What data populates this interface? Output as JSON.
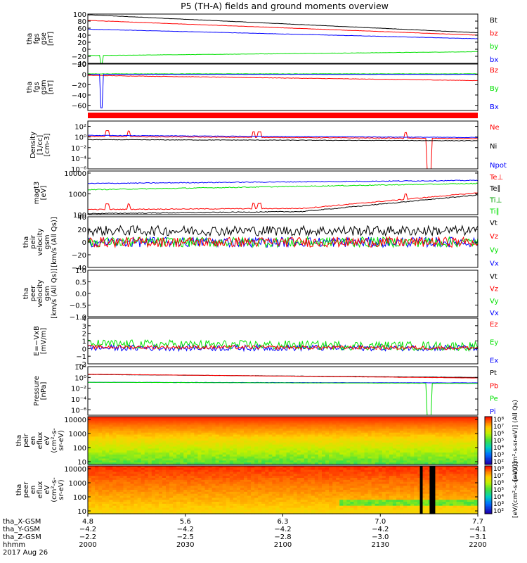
{
  "title": "P5 (TH-A) fields and ground moments overview",
  "colors": {
    "black": "#000000",
    "red": "#ff0000",
    "green": "#00e000",
    "blue": "#0000ff",
    "mid": "#00a0ff"
  },
  "chart_data": [
    {
      "type": "line",
      "ylabel": [
        "tha",
        "fgs",
        "gse",
        "[nT]"
      ],
      "ylim": [
        -40,
        100
      ],
      "scale": "linear",
      "yticks": [
        "100",
        "80",
        "60",
        "40",
        "20",
        "0",
        "−20",
        "−40"
      ],
      "tickvals": [
        100,
        80,
        60,
        40,
        20,
        0,
        -20,
        -40
      ],
      "legend": [
        "Bt",
        "bz",
        "by",
        "bx"
      ],
      "series": [
        {
          "name": "Bt",
          "color": "#000000",
          "x": [
            2000,
            2200
          ],
          "y": [
            98,
            47
          ],
          "noise": 0.4
        },
        {
          "name": "bz",
          "color": "#ff0000",
          "x": [
            2000,
            2200
          ],
          "y": [
            82,
            40
          ],
          "noise": 0.4
        },
        {
          "name": "by",
          "color": "#00e000",
          "x": [
            2000,
            2200
          ],
          "y": [
            -18,
            -7
          ],
          "noise": 0.4,
          "spike": [
            2007,
            -40
          ]
        },
        {
          "name": "bx",
          "color": "#0000ff",
          "x": [
            2000,
            2200
          ],
          "y": [
            57,
            30
          ],
          "noise": 0.4
        }
      ]
    },
    {
      "type": "line",
      "ylabel": [
        "tha",
        "fgs",
        "gsm",
        "[nT]"
      ],
      "ylim": [
        -70,
        20
      ],
      "scale": "linear",
      "yticks": [
        "20",
        "0",
        "−20",
        "−40",
        "−60"
      ],
      "tickvals": [
        20,
        0,
        -20,
        -40,
        -60
      ],
      "legend": [
        "Bz",
        "By",
        "Bx"
      ],
      "series": [
        {
          "name": "Bz",
          "color": "#ff0000",
          "x": [
            2000,
            2200
          ],
          "y": [
            -2,
            -12
          ],
          "noise": 0.4
        },
        {
          "name": "By",
          "color": "#00e000",
          "x": [
            2000,
            2200
          ],
          "y": [
            1,
            1
          ],
          "noise": 0.3
        },
        {
          "name": "Bx",
          "color": "#0000ff",
          "x": [
            2000,
            2200
          ],
          "y": [
            0,
            0
          ],
          "noise": 0.3,
          "spike": [
            2007,
            -65
          ]
        }
      ]
    },
    {
      "type": "flag_bar"
    },
    {
      "type": "line",
      "ylabel": [
        "Density",
        "[1/cc]",
        "[cm-3]"
      ],
      "ylim": [
        -6,
        3
      ],
      "scale": "log",
      "yticks": [
        "10²",
        "10⁰",
        "10⁻²",
        "10⁻⁴",
        "10⁻⁶"
      ],
      "tickvals": [
        2,
        0,
        -2,
        -4,
        -6
      ],
      "legend": [
        "Ne",
        "Ni",
        "Npot"
      ],
      "series": [
        {
          "name": "Ne",
          "color": "#ff0000",
          "x": [
            2000,
            2200
          ],
          "y": [
            0.1,
            -0.3
          ],
          "noise": 0.05,
          "bursts": [
            2010,
            2021,
            2085,
            2088,
            2163
          ],
          "dropout": [
            2174,
            2176
          ]
        },
        {
          "name": "Ni",
          "color": "#000000",
          "x": [
            2000,
            2200
          ],
          "y": [
            -0.5,
            -0.7
          ],
          "noise": 0.05
        },
        {
          "name": "Npot",
          "color": "#0000ff",
          "x": [
            2000,
            2200
          ],
          "y": [
            0.3,
            -0.1
          ],
          "noise": 0.05
        }
      ]
    },
    {
      "type": "line",
      "ylabel": [
        "magt3",
        "[eV]"
      ],
      "ylim": [
        2,
        4.1
      ],
      "scale": "log",
      "yticks": [
        "10000",
        "1000",
        "100"
      ],
      "tickvals": [
        4,
        3,
        2
      ],
      "legend": [
        "Te⊥",
        "Te∥",
        "Ti⊥",
        "Ti∥"
      ],
      "series": [
        {
          "name": "Te⊥",
          "color": "#ff0000",
          "x": [
            2000,
            2110,
            2200
          ],
          "y": [
            2.25,
            2.3,
            3.05
          ],
          "noise": 0.02,
          "bursts": [
            2010,
            2021,
            2085,
            2088,
            2163
          ]
        },
        {
          "name": "Te∥",
          "color": "#000000",
          "x": [
            2000,
            2110,
            2200
          ],
          "y": [
            2.05,
            2.15,
            2.95
          ],
          "noise": 0.02
        },
        {
          "name": "Ti⊥",
          "color": "#0000ff",
          "x": [
            2000,
            2200
          ],
          "y": [
            3.5,
            3.65
          ],
          "noise": 0.02
        },
        {
          "name": "Ti∥",
          "color": "#00e000",
          "x": [
            2000,
            2200
          ],
          "y": [
            3.2,
            3.5
          ],
          "noise": 0.02
        }
      ]
    },
    {
      "type": "line",
      "ylabel": [
        "tha",
        "peir",
        "velocity",
        "gsm",
        "[km/s (All Qs)]"
      ],
      "ylim": [
        -40,
        40
      ],
      "scale": "linear",
      "yticks": [
        "40",
        "20",
        "0",
        "−20",
        "−40"
      ],
      "tickvals": [
        40,
        20,
        0,
        -20,
        -40
      ],
      "legend": [
        "Vt",
        "Vz",
        "Vy",
        "Vx"
      ],
      "series": [
        {
          "name": "Vt",
          "color": "#000000",
          "x": [
            2000,
            2200
          ],
          "y": [
            18,
            18
          ],
          "noise": 8
        },
        {
          "name": "Vx",
          "color": "#0000ff",
          "x": [
            2000,
            2200
          ],
          "y": [
            0,
            0
          ],
          "noise": 8
        },
        {
          "name": "Vy",
          "color": "#00e000",
          "x": [
            2000,
            2200
          ],
          "y": [
            0,
            0
          ],
          "noise": 8
        },
        {
          "name": "Vz",
          "color": "#ff0000",
          "x": [
            2000,
            2200
          ],
          "y": [
            0,
            0
          ],
          "noise": 8
        }
      ]
    },
    {
      "type": "line",
      "ylabel": [
        "tha",
        "peer",
        "velocity",
        "gsm",
        "[km/s (All Qs)]"
      ],
      "ylim": [
        -1,
        1
      ],
      "scale": "linear",
      "yticks": [
        "1.0",
        "0.5",
        "0.0",
        "−0.5",
        "−1.0"
      ],
      "tickvals": [
        1,
        0.5,
        0,
        -0.5,
        -1
      ],
      "legend": [
        "Vt",
        "Vz",
        "Vy",
        "Vx"
      ],
      "series": []
    },
    {
      "type": "line",
      "ylabel": [
        "E=−VxB",
        "[mV/m]"
      ],
      "ylim": [
        -2,
        4
      ],
      "scale": "linear",
      "yticks": [
        "4",
        "3",
        "2",
        "1",
        "0",
        "−1",
        "−2"
      ],
      "tickvals": [
        4,
        3,
        2,
        1,
        0,
        -1,
        -2
      ],
      "legend": [
        "Ez",
        "Ey",
        "Ex"
      ],
      "series": [
        {
          "name": "Ex",
          "color": "#0000ff",
          "x": [
            2000,
            2200
          ],
          "y": [
            0.1,
            0.1
          ],
          "noise": 0.4
        },
        {
          "name": "Ey",
          "color": "#00e000",
          "x": [
            2000,
            2200
          ],
          "y": [
            0.6,
            0.3
          ],
          "noise": 0.6
        },
        {
          "name": "Ez",
          "color": "#ff0000",
          "x": [
            2000,
            2200
          ],
          "y": [
            0.2,
            0.1
          ],
          "noise": 0.25
        }
      ]
    },
    {
      "type": "line",
      "ylabel": [
        "Pressure",
        "[nPa]"
      ],
      "ylim": [
        -7,
        2
      ],
      "scale": "log",
      "yticks": [
        "10²",
        "10⁰",
        "10⁻²",
        "10⁻⁴",
        "10⁻⁶"
      ],
      "tickvals": [
        2,
        0,
        -2,
        -4,
        -6
      ],
      "legend": [
        "Pt",
        "Pb",
        "Pe",
        "Pi"
      ],
      "series": [
        {
          "name": "Pt",
          "color": "#000000",
          "x": [
            2000,
            2200
          ],
          "y": [
            0.55,
            0.0
          ],
          "noise": 0.02
        },
        {
          "name": "Pb",
          "color": "#ff0000",
          "x": [
            2000,
            2200
          ],
          "y": [
            0.6,
            -0.1
          ],
          "noise": 0.02
        },
        {
          "name": "Pi",
          "color": "#0000ff",
          "x": [
            2000,
            2200
          ],
          "y": [
            -0.9,
            -1.0
          ],
          "noise": 0.02
        },
        {
          "name": "Pe",
          "color": "#00e000",
          "x": [
            2000,
            2200
          ],
          "y": [
            -0.9,
            -1.1
          ],
          "noise": 0.02,
          "dropout": [
            2174,
            2176
          ]
        }
      ]
    },
    {
      "type": "heatmap",
      "ylabel": [
        "tha",
        "peir",
        "en",
        "eflux",
        "eV",
        "(cm²-s-",
        "sr-eV)"
      ],
      "ylim": [
        0.8,
        4.2
      ],
      "scale": "log",
      "yticks": [
        "10000",
        "1000",
        "100",
        "10"
      ],
      "tickvals": [
        4,
        3,
        2,
        1
      ],
      "colorbar": {
        "ticks": [
          "10⁸",
          "10⁷",
          "10⁶",
          "10⁵",
          "10⁴",
          "10³",
          "10²"
        ],
        "label": "[eV/(cm²-s-sr-eV)] (All Qs)"
      }
    },
    {
      "type": "heatmap",
      "ylabel": [
        "tha",
        "peer",
        "en",
        "eflux",
        "eV",
        "(cm²-s-",
        "sr-eV)"
      ],
      "ylim": [
        0.8,
        4.2
      ],
      "scale": "log",
      "yticks": [
        "10000",
        "1000",
        "100",
        "10"
      ],
      "tickvals": [
        4,
        3,
        2,
        1
      ],
      "colorbar": {
        "ticks": [
          "10⁸",
          "10⁷",
          "10⁶",
          "10⁵",
          "10⁴",
          "10³",
          "10²"
        ],
        "label": "[eV/(cm²-s-sr-eV)]"
      },
      "gaps": [
        2171,
        2176
      ]
    }
  ],
  "xaxis": {
    "rows": [
      {
        "label": "tha_X-GSM",
        "values": [
          "4.8",
          "5.6",
          "6.3",
          "7.0",
          "7.7"
        ]
      },
      {
        "label": "tha_Y-GSM",
        "values": [
          "−4.2",
          "−4.2",
          "−4.2",
          "−4.2",
          "−4.1"
        ]
      },
      {
        "label": "tha_Z-GSM",
        "values": [
          "−2.2",
          "−2.5",
          "−2.8",
          "−3.0",
          "−3.1"
        ]
      },
      {
        "label": "hhmm",
        "values": [
          "2000",
          "2030",
          "2100",
          "2130",
          "2200"
        ]
      }
    ],
    "date": "2017 Aug 26",
    "range": [
      2000,
      2200
    ]
  }
}
